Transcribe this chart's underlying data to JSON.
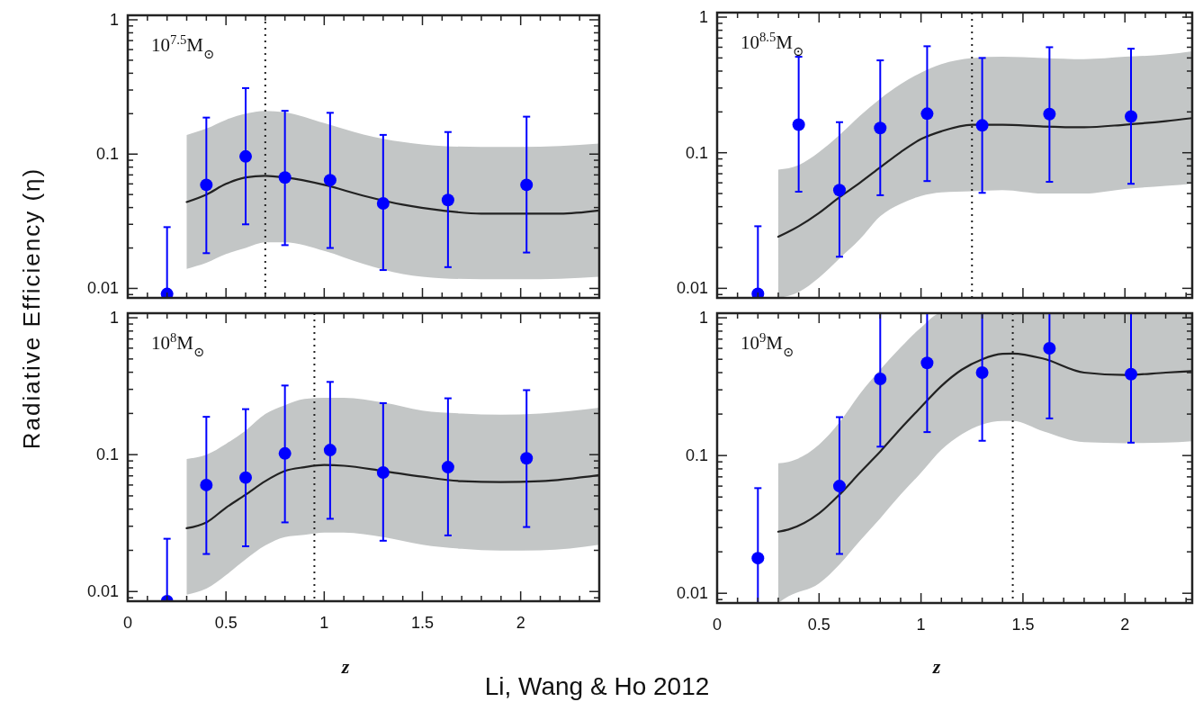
{
  "chart_data": [
    {
      "type": "scatter",
      "ylabel": "Radiative Efficiency (η)",
      "xlim": [
        0,
        2.4
      ],
      "ylim": [
        0.0085,
        1.08
      ],
      "log": "y",
      "tick_labels": "y",
      "annotations": [
        "10$^{7.5}$M$_{⊙}$"
      ],
      "xticks": [
        0,
        {
          "value": 0.1,
          "label": null
        },
        {
          "value": 0.2,
          "label": null
        },
        {
          "value": 0.3,
          "label": null
        },
        {
          "value": 0.4,
          "label": null
        },
        0.5,
        {
          "value": 0.6,
          "label": null
        },
        {
          "value": 0.7,
          "label": null
        },
        {
          "value": 0.8,
          "label": null
        },
        {
          "value": 0.9,
          "label": null
        },
        1,
        {
          "value": 1.1,
          "label": null
        },
        {
          "value": 1.2,
          "label": null
        },
        {
          "value": 1.3,
          "label": null
        },
        {
          "value": 1.4,
          "label": null
        },
        1.5,
        {
          "value": 1.6,
          "label": null
        },
        {
          "value": 1.7,
          "label": null
        },
        {
          "value": 1.8,
          "label": null
        },
        {
          "value": 1.9,
          "label": null
        },
        2,
        {
          "value": 2.1,
          "label": null
        },
        {
          "value": 2.2,
          "label": null
        },
        {
          "value": 2.3,
          "label": null
        }
      ],
      "yticks": [
        {
          "value": 0.009,
          "label": null
        },
        0.01,
        {
          "value": 0.02,
          "label": null
        },
        {
          "value": 0.03,
          "label": null
        },
        {
          "value": 0.04,
          "label": null
        },
        {
          "value": 0.05,
          "label": null
        },
        {
          "value": 0.06,
          "label": null
        },
        {
          "value": 0.07,
          "label": null
        },
        {
          "value": 0.08,
          "label": null
        },
        {
          "value": 0.09,
          "label": null
        },
        0.1,
        {
          "value": 0.2,
          "label": null
        },
        {
          "value": 0.3,
          "label": null
        },
        {
          "value": 0.4,
          "label": null
        },
        {
          "value": 0.5,
          "label": null
        },
        {
          "value": 0.6,
          "label": null
        },
        {
          "value": 0.7,
          "label": null
        },
        {
          "value": 0.8,
          "label": null
        },
        {
          "value": 0.9,
          "label": null
        },
        1
      ],
      "ref_lines": [
        {
          "axis": "x",
          "value": 0.7,
          "line_style": "dotted",
          "color": "#222222"
        }
      ],
      "series": [
        {
          "type": "line",
          "color": "#222222",
          "x": [
            0.3,
            0.4,
            0.5,
            0.6,
            0.7,
            0.8,
            1.0,
            1.2,
            1.4,
            1.6,
            1.8,
            2.0,
            2.2,
            2.4
          ],
          "values": [
            0.044,
            0.05,
            0.06,
            0.067,
            0.069,
            0.067,
            0.059,
            0.049,
            0.042,
            0.038,
            0.036,
            0.036,
            0.036,
            0.038
          ],
          "lower": [
            0.014,
            0.0155,
            0.018,
            0.02,
            0.022,
            0.022,
            0.019,
            0.0152,
            0.0128,
            0.0119,
            0.0117,
            0.0117,
            0.0118,
            0.0122
          ],
          "upper": [
            0.139,
            0.155,
            0.18,
            0.2,
            0.21,
            0.205,
            0.17,
            0.14,
            0.123,
            0.115,
            0.113,
            0.113,
            0.115,
            0.12
          ]
        },
        {
          "type": "scatter",
          "marker": "circle",
          "color": "#0000ff",
          "x": [
            0.2,
            0.4,
            0.6,
            0.8,
            1.03,
            1.3,
            1.63,
            2.03
          ],
          "values": [
            0.0091,
            0.059,
            0.096,
            0.067,
            0.064,
            0.043,
            0.0455,
            0.059
          ],
          "errors": [
            [
              0.0085,
              0.0286
            ],
            [
              0.0183,
              0.187
            ],
            [
              0.03,
              0.31
            ],
            [
              0.021,
              0.21
            ],
            [
              0.02,
              0.203
            ],
            [
              0.0137,
              0.139
            ],
            [
              0.0144,
              0.146
            ],
            [
              0.0185,
              0.19
            ]
          ]
        }
      ]
    },
    {
      "type": "scatter",
      "xlim": [
        0,
        2.33
      ],
      "ylim": [
        0.0085,
        1.08
      ],
      "log": "y",
      "tick_labels": "y",
      "annotations": [
        "10$^{8.5}$M$_{⊙}$"
      ],
      "xticks": [
        0,
        {
          "value": 0.1,
          "label": null
        },
        {
          "value": 0.2,
          "label": null
        },
        {
          "value": 0.3,
          "label": null
        },
        {
          "value": 0.4,
          "label": null
        },
        0.5,
        {
          "value": 0.6,
          "label": null
        },
        {
          "value": 0.7,
          "label": null
        },
        {
          "value": 0.8,
          "label": null
        },
        {
          "value": 0.9,
          "label": null
        },
        1,
        {
          "value": 1.1,
          "label": null
        },
        {
          "value": 1.2,
          "label": null
        },
        {
          "value": 1.3,
          "label": null
        },
        {
          "value": 1.4,
          "label": null
        },
        1.5,
        {
          "value": 1.6,
          "label": null
        },
        {
          "value": 1.7,
          "label": null
        },
        {
          "value": 1.8,
          "label": null
        },
        {
          "value": 1.9,
          "label": null
        },
        2,
        {
          "value": 2.1,
          "label": null
        },
        {
          "value": 2.2,
          "label": null
        },
        {
          "value": 2.3,
          "label": null
        }
      ],
      "yticks": [
        {
          "value": 0.009,
          "label": null
        },
        0.01,
        {
          "value": 0.02,
          "label": null
        },
        {
          "value": 0.03,
          "label": null
        },
        {
          "value": 0.04,
          "label": null
        },
        {
          "value": 0.05,
          "label": null
        },
        {
          "value": 0.06,
          "label": null
        },
        {
          "value": 0.07,
          "label": null
        },
        {
          "value": 0.08,
          "label": null
        },
        {
          "value": 0.09,
          "label": null
        },
        0.1,
        {
          "value": 0.2,
          "label": null
        },
        {
          "value": 0.3,
          "label": null
        },
        {
          "value": 0.4,
          "label": null
        },
        {
          "value": 0.5,
          "label": null
        },
        {
          "value": 0.6,
          "label": null
        },
        {
          "value": 0.7,
          "label": null
        },
        {
          "value": 0.8,
          "label": null
        },
        {
          "value": 0.9,
          "label": null
        },
        1
      ],
      "ref_lines": [
        {
          "axis": "x",
          "value": 1.25,
          "line_style": "dotted",
          "color": "#222222"
        }
      ],
      "series": [
        {
          "type": "line",
          "color": "#222222",
          "x": [
            0.3,
            0.4,
            0.5,
            0.6,
            0.7,
            0.8,
            0.9,
            1.0,
            1.1,
            1.25,
            1.4,
            1.6,
            1.8,
            2.0,
            2.2,
            2.33
          ],
          "values": [
            0.024,
            0.0287,
            0.036,
            0.047,
            0.06,
            0.078,
            0.101,
            0.126,
            0.144,
            0.161,
            0.161,
            0.156,
            0.154,
            0.161,
            0.171,
            0.18
          ],
          "lower": [
            0.0085,
            0.0094,
            0.012,
            0.0166,
            0.023,
            0.034,
            0.042,
            0.048,
            0.051,
            0.052,
            0.053,
            0.05,
            0.05,
            0.054,
            0.057,
            0.059
          ],
          "upper": [
            0.075,
            0.081,
            0.101,
            0.135,
            0.187,
            0.25,
            0.32,
            0.39,
            0.45,
            0.5,
            0.51,
            0.5,
            0.49,
            0.51,
            0.53,
            0.56
          ]
        },
        {
          "type": "scatter",
          "marker": "circle",
          "color": "#0000ff",
          "x": [
            0.2,
            0.4,
            0.6,
            0.8,
            1.03,
            1.3,
            1.63,
            2.03
          ],
          "values": [
            0.0091,
            0.161,
            0.053,
            0.152,
            0.194,
            0.159,
            0.193,
            0.185
          ],
          "errors": [
            [
              0.0085,
              0.0287
            ],
            [
              0.0516,
              0.51
            ],
            [
              0.0171,
              0.168
            ],
            [
              0.0486,
              0.48
            ],
            [
              0.0618,
              0.61
            ],
            [
              0.0506,
              0.5
            ],
            [
              0.061,
              0.6
            ],
            [
              0.059,
              0.585
            ]
          ]
        }
      ]
    },
    {
      "type": "scatter",
      "xlabel": "z",
      "xlim": [
        0,
        2.4
      ],
      "ylim": [
        0.0085,
        1.08
      ],
      "log": "y",
      "annotations": [
        "10$^{8}$M$_{⊙}$",
        "Li, Wang & Ho 2012"
      ],
      "xticks": [
        0,
        {
          "value": 0.1,
          "label": null
        },
        {
          "value": 0.2,
          "label": null
        },
        {
          "value": 0.3,
          "label": null
        },
        {
          "value": 0.4,
          "label": null
        },
        0.5,
        {
          "value": 0.6,
          "label": null
        },
        {
          "value": 0.7,
          "label": null
        },
        {
          "value": 0.8,
          "label": null
        },
        {
          "value": 0.9,
          "label": null
        },
        1,
        {
          "value": 1.1,
          "label": null
        },
        {
          "value": 1.2,
          "label": null
        },
        {
          "value": 1.3,
          "label": null
        },
        {
          "value": 1.4,
          "label": null
        },
        1.5,
        {
          "value": 1.6,
          "label": null
        },
        {
          "value": 1.7,
          "label": null
        },
        {
          "value": 1.8,
          "label": null
        },
        {
          "value": 1.9,
          "label": null
        },
        2,
        {
          "value": 2.1,
          "label": null
        },
        {
          "value": 2.2,
          "label": null
        },
        {
          "value": 2.3,
          "label": null
        }
      ],
      "yticks": [
        {
          "value": 0.009,
          "label": null
        },
        0.01,
        {
          "value": 0.02,
          "label": null
        },
        {
          "value": 0.03,
          "label": null
        },
        {
          "value": 0.04,
          "label": null
        },
        {
          "value": 0.05,
          "label": null
        },
        {
          "value": 0.06,
          "label": null
        },
        {
          "value": 0.07,
          "label": null
        },
        {
          "value": 0.08,
          "label": null
        },
        {
          "value": 0.09,
          "label": null
        },
        0.1,
        {
          "value": 0.2,
          "label": null
        },
        {
          "value": 0.3,
          "label": null
        },
        {
          "value": 0.4,
          "label": null
        },
        {
          "value": 0.5,
          "label": null
        },
        {
          "value": 0.6,
          "label": null
        },
        {
          "value": 0.7,
          "label": null
        },
        {
          "value": 0.8,
          "label": null
        },
        {
          "value": 0.9,
          "label": null
        },
        1
      ],
      "ref_lines": [
        {
          "axis": "x",
          "value": 0.95,
          "line_style": "dotted",
          "color": "#222222"
        }
      ],
      "series": [
        {
          "type": "line",
          "color": "#222222",
          "x": [
            0.3,
            0.4,
            0.5,
            0.6,
            0.7,
            0.8,
            0.9,
            1.0,
            1.1,
            1.3,
            1.5,
            1.7,
            1.9,
            2.1,
            2.4
          ],
          "values": [
            0.029,
            0.032,
            0.041,
            0.051,
            0.064,
            0.076,
            0.081,
            0.084,
            0.083,
            0.076,
            0.069,
            0.064,
            0.063,
            0.064,
            0.071
          ],
          "lower": [
            0.0095,
            0.0105,
            0.0132,
            0.0172,
            0.0217,
            0.025,
            0.026,
            0.027,
            0.027,
            0.025,
            0.022,
            0.0205,
            0.0199,
            0.02,
            0.022
          ],
          "upper": [
            0.093,
            0.1,
            0.12,
            0.15,
            0.198,
            0.23,
            0.255,
            0.26,
            0.26,
            0.24,
            0.21,
            0.2,
            0.196,
            0.2,
            0.22
          ]
        },
        {
          "type": "scatter",
          "marker": "circle",
          "color": "#0000ff",
          "x": [
            0.2,
            0.4,
            0.6,
            0.8,
            1.03,
            1.3,
            1.63,
            2.03
          ],
          "values": [
            0.0085,
            0.06,
            0.068,
            0.102,
            0.108,
            0.074,
            0.081,
            0.094
          ],
          "errors": [
            [
              0.0085,
              0.0243
            ],
            [
              0.0188,
              0.189
            ],
            [
              0.0214,
              0.215
            ],
            [
              0.032,
              0.32
            ],
            [
              0.034,
              0.34
            ],
            [
              0.0235,
              0.238
            ],
            [
              0.0257,
              0.258
            ],
            [
              0.0296,
              0.296
            ]
          ]
        }
      ]
    },
    {
      "type": "scatter",
      "xlabel": "z",
      "xlim": [
        0,
        2.33
      ],
      "ylim": [
        0.0085,
        1.08
      ],
      "log": "y",
      "annotations": [
        "10$^{9}$M$_{⊙}$"
      ],
      "xticks": [
        0,
        {
          "value": 0.1,
          "label": null
        },
        {
          "value": 0.2,
          "label": null
        },
        {
          "value": 0.3,
          "label": null
        },
        {
          "value": 0.4,
          "label": null
        },
        0.5,
        {
          "value": 0.6,
          "label": null
        },
        {
          "value": 0.7,
          "label": null
        },
        {
          "value": 0.8,
          "label": null
        },
        {
          "value": 0.9,
          "label": null
        },
        1,
        {
          "value": 1.1,
          "label": null
        },
        {
          "value": 1.2,
          "label": null
        },
        {
          "value": 1.3,
          "label": null
        },
        {
          "value": 1.4,
          "label": null
        },
        1.5,
        {
          "value": 1.6,
          "label": null
        },
        {
          "value": 1.7,
          "label": null
        },
        {
          "value": 1.8,
          "label": null
        },
        {
          "value": 1.9,
          "label": null
        },
        2,
        {
          "value": 2.1,
          "label": null
        },
        {
          "value": 2.2,
          "label": null
        },
        {
          "value": 2.3,
          "label": null
        }
      ],
      "yticks": [
        {
          "value": 0.009,
          "label": null
        },
        0.01,
        {
          "value": 0.02,
          "label": null
        },
        {
          "value": 0.03,
          "label": null
        },
        {
          "value": 0.04,
          "label": null
        },
        {
          "value": 0.05,
          "label": null
        },
        {
          "value": 0.06,
          "label": null
        },
        {
          "value": 0.07,
          "label": null
        },
        {
          "value": 0.08,
          "label": null
        },
        {
          "value": 0.09,
          "label": null
        },
        0.1,
        {
          "value": 0.2,
          "label": null
        },
        {
          "value": 0.3,
          "label": null
        },
        {
          "value": 0.4,
          "label": null
        },
        {
          "value": 0.5,
          "label": null
        },
        {
          "value": 0.6,
          "label": null
        },
        {
          "value": 0.7,
          "label": null
        },
        {
          "value": 0.8,
          "label": null
        },
        {
          "value": 0.9,
          "label": null
        },
        1
      ],
      "ref_lines": [
        {
          "axis": "x",
          "value": 1.45,
          "line_style": "dotted",
          "color": "#222222"
        }
      ],
      "series": [
        {
          "type": "line",
          "color": "#222222",
          "x": [
            0.3,
            0.35,
            0.5,
            0.6,
            0.7,
            0.8,
            0.9,
            1.0,
            1.1,
            1.2,
            1.3,
            1.4,
            1.45,
            1.6,
            1.8,
            2.0,
            2.2,
            2.33
          ],
          "values": [
            0.028,
            0.029,
            0.038,
            0.052,
            0.075,
            0.107,
            0.157,
            0.225,
            0.32,
            0.42,
            0.5,
            0.547,
            0.55,
            0.505,
            0.4,
            0.385,
            0.4,
            0.41
          ],
          "lower": [
            0.0085,
            0.0095,
            0.0118,
            0.0162,
            0.024,
            0.035,
            0.052,
            0.075,
            0.11,
            0.143,
            0.168,
            0.178,
            0.178,
            0.15,
            0.125,
            0.123,
            0.124,
            0.127
          ],
          "upper": [
            0.088,
            0.09,
            0.12,
            0.174,
            0.28,
            0.42,
            0.61,
            0.85,
            1.08,
            1.08,
            1.08,
            1.08,
            1.08,
            1.08,
            1.08,
            1.08,
            1.08,
            1.08
          ]
        },
        {
          "type": "scatter",
          "marker": "circle",
          "color": "#0000ff",
          "x": [
            0.2,
            0.6,
            0.8,
            1.03,
            1.3,
            1.63,
            2.03
          ],
          "values": [
            0.018,
            0.06,
            0.36,
            0.47,
            0.4,
            0.6,
            0.39
          ],
          "errors": [
            [
              0.0085,
              0.058
            ],
            [
              0.0193,
              0.19
            ],
            [
              0.116,
              1.08
            ],
            [
              0.148,
              1.08
            ],
            [
              0.128,
              1.08
            ],
            [
              0.186,
              1.08
            ],
            [
              0.124,
              1.08
            ]
          ]
        }
      ]
    }
  ]
}
